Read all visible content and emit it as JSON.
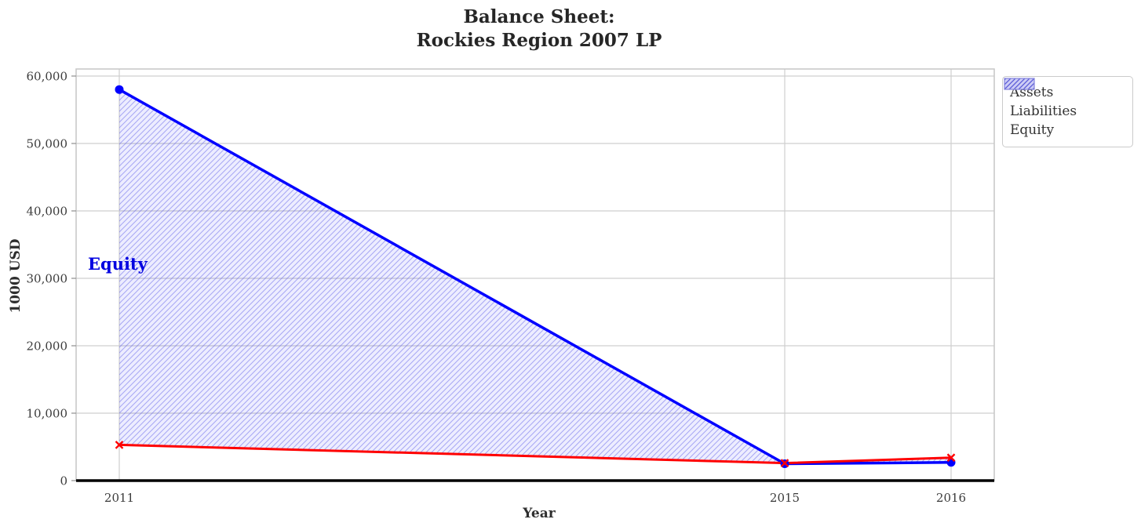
{
  "chart_data": {
    "type": "line",
    "title": "Balance Sheet:\nRockies Region 2007 LP",
    "xlabel": "Year",
    "ylabel": "1000 USD",
    "x": [
      2011,
      2015,
      2016
    ],
    "series": [
      {
        "name": "Assets",
        "values": [
          58000,
          2500,
          2700
        ],
        "color": "#0000ff",
        "marker": "circle"
      },
      {
        "name": "Liabilities",
        "values": [
          5300,
          2600,
          3400
        ],
        "color": "#ff0000",
        "marker": "x"
      }
    ],
    "fill_between": {
      "name": "Equity",
      "between": [
        "Assets",
        "Liabilities"
      ],
      "fill_color": "rgba(0,0,255,0.07)",
      "hatch": "/",
      "hatch_color": "rgba(80,80,230,0.45)"
    },
    "annotation": {
      "text": "Equity",
      "x": 2010.85,
      "y": 31800,
      "color": "#0000e0"
    },
    "legend": {
      "position": "outside upper right",
      "entries": [
        "Assets",
        "Liabilities",
        "Equity"
      ]
    },
    "xticks": [
      2011,
      2015,
      2016
    ],
    "xtick_labels": [
      "2011",
      "2015",
      "2016"
    ],
    "yticks": [
      0,
      10000,
      20000,
      30000,
      40000,
      50000,
      60000
    ],
    "ytick_labels": [
      "0",
      "10,000",
      "20,000",
      "30,000",
      "40,000",
      "50,000",
      "60,000"
    ],
    "xlim": [
      2010.74,
      2016.26
    ],
    "ylim": [
      0,
      61050
    ],
    "grid": true,
    "colors": {
      "grid": "#cfcfcf",
      "plot_border": "#c6c6c6",
      "axis_zero_line": "#000000",
      "tick_label": "#3b3b3b",
      "title": "#262626"
    }
  }
}
